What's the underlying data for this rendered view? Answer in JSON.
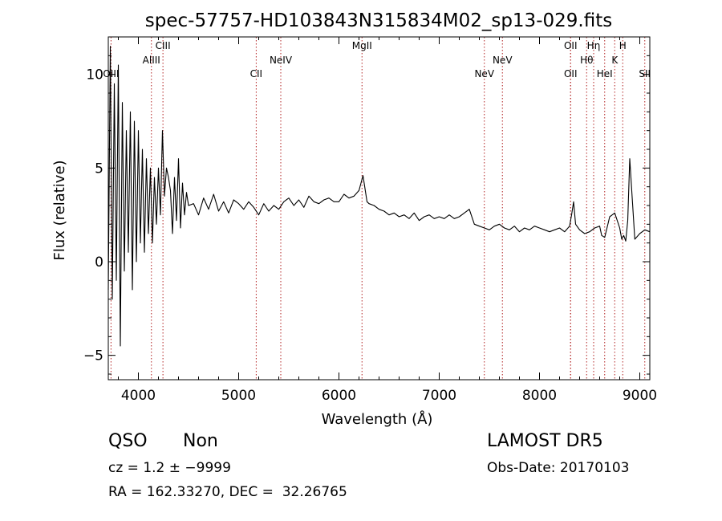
{
  "chart_data": {
    "type": "line",
    "title": "spec-57757-HD103843N315834M02_sp13-029.fits",
    "xlabel": "Wavelength (Å)",
    "ylabel": "Flux (relative)",
    "xlim": [
      3700,
      9100
    ],
    "ylim": [
      -6.3,
      12
    ],
    "xticks": [
      4000,
      5000,
      6000,
      7000,
      8000,
      9000
    ],
    "yticks": [
      -5,
      0,
      5,
      10
    ],
    "xtick_labels": [
      "4000",
      "5000",
      "6000",
      "7000",
      "8000",
      "9000"
    ],
    "ytick_labels": [
      "−5",
      "0",
      "5",
      "10"
    ],
    "series": [
      {
        "x": [
          3700,
          3720,
          3740,
          3760,
          3780,
          3800,
          3820,
          3840,
          3860,
          3880,
          3900,
          3920,
          3940,
          3960,
          3980,
          4000,
          4020,
          4040,
          4060,
          4080,
          4100,
          4120,
          4140,
          4160,
          4180,
          4200,
          4220,
          4240,
          4260,
          4280,
          4300,
          4320,
          4340,
          4360,
          4380,
          4400,
          4420,
          4440,
          4460,
          4480,
          4500,
          4550,
          4600,
          4650,
          4700,
          4750,
          4800,
          4850,
          4900,
          4950,
          5000,
          5050,
          5100,
          5150,
          5200,
          5250,
          5300,
          5350,
          5400,
          5450,
          5500,
          5550,
          5600,
          5650,
          5700,
          5750,
          5800,
          5850,
          5900,
          5950,
          6000,
          6050,
          6100,
          6150,
          6200,
          6220,
          6240,
          6260,
          6280,
          6300,
          6350,
          6400,
          6450,
          6500,
          6550,
          6600,
          6650,
          6700,
          6750,
          6800,
          6850,
          6900,
          6950,
          7000,
          7050,
          7100,
          7150,
          7200,
          7250,
          7300,
          7350,
          7400,
          7450,
          7500,
          7550,
          7600,
          7650,
          7700,
          7750,
          7800,
          7850,
          7900,
          7950,
          8000,
          8050,
          8100,
          8150,
          8200,
          8250,
          8300,
          8320,
          8340,
          8360,
          8400,
          8450,
          8500,
          8550,
          8600,
          8620,
          8650,
          8700,
          8750,
          8800,
          8820,
          8840,
          8860,
          8880,
          8900,
          8950,
          9000,
          9050,
          9100
        ],
        "y": [
          -1.5,
          11.5,
          -2,
          9.5,
          -1,
          10.5,
          -4.5,
          8.5,
          -0.5,
          7,
          0.5,
          8,
          -1.5,
          7.5,
          0,
          7,
          1,
          6,
          0.5,
          5.5,
          1.5,
          5,
          1,
          4.5,
          2,
          5,
          2.5,
          7,
          3.5,
          5,
          4.5,
          3.8,
          1.5,
          4.5,
          2.2,
          5.5,
          1.8,
          4.2,
          2.5,
          3.7,
          3,
          3.1,
          2.5,
          3.4,
          2.8,
          3.6,
          2.7,
          3.2,
          2.6,
          3.3,
          3.1,
          2.8,
          3.2,
          2.9,
          2.5,
          3.1,
          2.7,
          3,
          2.8,
          3.2,
          3.4,
          3,
          3.3,
          2.9,
          3.5,
          3.2,
          3.1,
          3.3,
          3.4,
          3.2,
          3.2,
          3.6,
          3.4,
          3.5,
          3.8,
          4.2,
          4.6,
          3.9,
          3.2,
          3.1,
          3,
          2.8,
          2.7,
          2.5,
          2.6,
          2.4,
          2.5,
          2.3,
          2.6,
          2.2,
          2.4,
          2.5,
          2.3,
          2.4,
          2.3,
          2.5,
          2.3,
          2.4,
          2.6,
          2.8,
          2,
          1.9,
          1.8,
          1.7,
          1.9,
          2,
          1.8,
          1.7,
          1.9,
          1.6,
          1.8,
          1.7,
          1.9,
          1.8,
          1.7,
          1.6,
          1.7,
          1.8,
          1.6,
          1.9,
          2.5,
          3.2,
          2,
          1.7,
          1.5,
          1.6,
          1.8,
          1.9,
          1.4,
          1.3,
          2.4,
          2.6,
          1.8,
          1.2,
          1.4,
          1.1,
          2.2,
          5.5,
          1.2,
          1.5,
          1.7,
          1.6
        ]
      }
    ],
    "lines": [
      {
        "label": "OIII",
        "x": 3727,
        "row": 2
      },
      {
        "label": "AlIII",
        "x": 4130,
        "row": 1
      },
      {
        "label": "CIII",
        "x": 4245,
        "row": 0
      },
      {
        "label": "CII",
        "x": 5175,
        "row": 2
      },
      {
        "label": "NeIV",
        "x": 5420,
        "row": 1
      },
      {
        "label": "MgII",
        "x": 6230,
        "row": 0
      },
      {
        "label": "NeV",
        "x": 7450,
        "row": 2
      },
      {
        "label": "NeV",
        "x": 7630,
        "row": 1
      },
      {
        "label": "OII",
        "x": 8310,
        "row": 2
      },
      {
        "label": "OII",
        "x": 8310,
        "row": 0
      },
      {
        "label": "Hθ",
        "x": 8470,
        "row": 1
      },
      {
        "label": "Hη",
        "x": 8540,
        "row": 0
      },
      {
        "label": "HeI",
        "x": 8650,
        "row": 2
      },
      {
        "label": "K",
        "x": 8750,
        "row": 1
      },
      {
        "label": "H",
        "x": 8830,
        "row": 0
      },
      {
        "label": "SII",
        "x": 9050,
        "row": 2
      }
    ]
  },
  "info": {
    "class": "QSO",
    "subclass": "Non",
    "survey": "LAMOST DR5",
    "cz": "cz = 1.2 ± −9999",
    "obsdate": "Obs-Date: 20170103",
    "radec": "RA = 162.33270, DEC =  32.26765"
  }
}
